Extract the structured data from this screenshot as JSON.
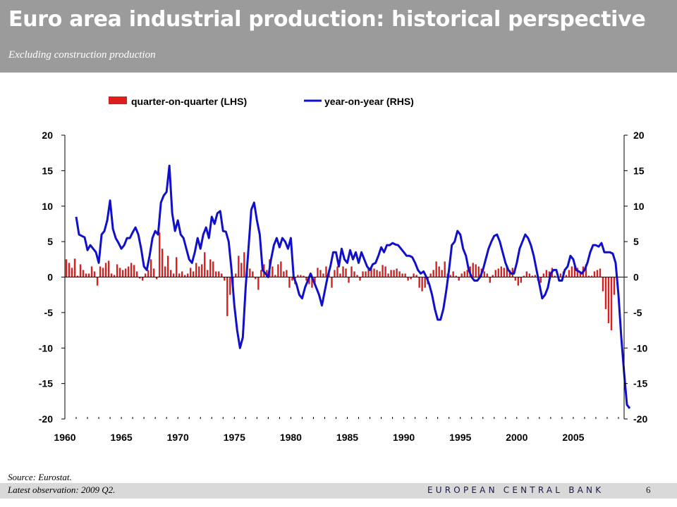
{
  "header": {
    "title": "Euro area industrial production: historical perspective",
    "subtitle": "Excluding construction production"
  },
  "footer": {
    "source": "Source: Eurostat.",
    "latest": "Latest observation: 2009 Q2.",
    "bank": "EUROPEAN CENTRAL BANK",
    "page": "6"
  },
  "colors": {
    "bars": "#dd1e1e",
    "line": "#1010cc",
    "banner": "#9b9b9b"
  },
  "chart_data": {
    "type": "bar",
    "title": "",
    "legend_position": "top",
    "grid": false,
    "x": {
      "range": [
        1960,
        2009.5
      ],
      "ticks": [
        1960,
        1965,
        1970,
        1975,
        1980,
        1985,
        1990,
        1995,
        2000,
        2005
      ],
      "tick_labels": [
        "1960",
        "1965",
        "1970",
        "1975",
        "1980",
        "1985",
        "1990",
        "1995",
        "2000",
        "2005"
      ]
    },
    "y_left": {
      "range": [
        -20,
        20
      ],
      "ticks": [
        20,
        15,
        10,
        5,
        0,
        -5,
        -10,
        -15,
        -20
      ],
      "tick_labels": [
        "20",
        "15",
        "10",
        "5",
        "0",
        "-5",
        "-10",
        "-15",
        "-20"
      ]
    },
    "y_right": {
      "range": [
        -20,
        20
      ],
      "ticks": [
        20,
        15,
        10,
        5,
        0,
        -5,
        -10,
        -15,
        -20
      ],
      "tick_labels": [
        "20",
        "15",
        "10",
        "5",
        "0",
        "-5",
        "-10",
        "-15",
        "-20"
      ]
    },
    "series": [
      {
        "name": "quarter-on-quarter (LHS)",
        "type": "bar",
        "axis": "left",
        "start": 1960.0,
        "step": 0.25,
        "values": [
          2.5,
          2.0,
          1.3,
          2.6,
          0.2,
          1.8,
          1.0,
          0.5,
          0.5,
          1.5,
          0.8,
          -1.2,
          1.5,
          1.3,
          2.0,
          2.3,
          0.5,
          0.3,
          1.8,
          1.3,
          1.0,
          1.2,
          1.5,
          2.0,
          1.7,
          0.8,
          -0.2,
          -0.5,
          0.5,
          1.0,
          2.5,
          1.2,
          -0.3,
          6.3,
          4.0,
          1.5,
          3.0,
          1.0,
          0.5,
          2.8,
          0.5,
          0.8,
          0.3,
          0.5,
          1.3,
          0.8,
          2.0,
          1.5,
          1.8,
          3.5,
          1.0,
          2.5,
          2.2,
          0.8,
          0.8,
          0.5,
          -0.5,
          -5.5,
          -2.5,
          -1.8,
          0.5,
          3.0,
          2.0,
          3.5,
          1.5,
          1.2,
          0.8,
          -0.3,
          -1.8,
          1.0,
          1.8,
          1.0,
          2.5,
          1.5,
          0.3,
          1.8,
          2.2,
          0.8,
          1.0,
          -1.5,
          -0.5,
          -1.0,
          0.3,
          0.3,
          0.2,
          -0.5,
          -1.0,
          -1.5,
          -0.8,
          1.3,
          1.0,
          0.5,
          1.5,
          1.0,
          -1.5,
          1.0,
          1.5,
          0.5,
          1.5,
          1.2,
          -0.8,
          1.5,
          0.8,
          0.3,
          -0.5,
          0.8,
          0.8,
          1.2,
          1.3,
          1.2,
          1.0,
          0.8,
          1.7,
          1.5,
          0.5,
          1.0,
          1.0,
          1.2,
          0.8,
          0.5,
          0.5,
          -0.5,
          -0.3,
          0.5,
          0.3,
          -1.5,
          -2.0,
          -1.5,
          -1.0,
          0.5,
          1.0,
          2.2,
          1.5,
          1.0,
          2.2,
          0.5,
          0.3,
          0.8,
          0.2,
          -0.5,
          0.5,
          0.8,
          1.0,
          1.5,
          2.0,
          1.8,
          1.5,
          1.2,
          0.8,
          0.5,
          -0.8,
          0.3,
          1.0,
          1.2,
          1.5,
          1.3,
          1.5,
          1.0,
          1.3,
          -0.5,
          -1.2,
          -0.8,
          0.2,
          0.8,
          0.5,
          0.2,
          0.3,
          -0.5,
          -0.8,
          0.5,
          1.0,
          0.8,
          1.3,
          0.2,
          0.3,
          0.5,
          0.8,
          0.3,
          1.0,
          1.5,
          1.5,
          1.3,
          0.8,
          1.5,
          1.8,
          0.2,
          0.2,
          0.8,
          1.0,
          1.2,
          -2.0,
          -4.5,
          -6.5,
          -7.5,
          -2.5
        ]
      },
      {
        "name": "year-on-year (RHS)",
        "type": "line",
        "axis": "right",
        "start": 1961.0,
        "step": 0.25,
        "values": [
          8.5,
          6.0,
          5.8,
          5.6,
          3.8,
          4.5,
          4.0,
          3.5,
          2.0,
          6.0,
          6.5,
          8.0,
          10.8,
          6.8,
          5.5,
          4.8,
          4.0,
          4.5,
          5.5,
          5.5,
          6.3,
          7.0,
          6.0,
          4.0,
          1.5,
          1.0,
          3.0,
          5.5,
          6.5,
          6.0,
          10.5,
          11.5,
          12.0,
          15.7,
          9.0,
          6.5,
          8.0,
          6.0,
          5.5,
          4.0,
          2.5,
          2.0,
          3.5,
          5.5,
          4.0,
          6.0,
          7.0,
          5.5,
          8.5,
          7.5,
          9.0,
          9.3,
          6.5,
          6.4,
          5.0,
          1.0,
          -4.0,
          -7.5,
          -10.0,
          -8.5,
          -1.5,
          4.0,
          9.5,
          10.5,
          8.0,
          6.0,
          1.0,
          0.5,
          0.0,
          2.5,
          4.5,
          5.5,
          4.2,
          5.5,
          5.0,
          4.0,
          5.5,
          0.0,
          -1.0,
          -2.5,
          -3.0,
          -1.5,
          -0.5,
          0.5,
          -0.5,
          -1.5,
          -2.5,
          -4.0,
          -2.0,
          0.0,
          1.5,
          3.5,
          3.5,
          1.5,
          4.0,
          2.5,
          2.0,
          3.8,
          2.5,
          3.5,
          2.0,
          3.5,
          2.5,
          1.5,
          1.0,
          1.8,
          2.0,
          3.0,
          4.2,
          3.5,
          4.5,
          4.5,
          4.8,
          4.6,
          4.5,
          4.0,
          3.5,
          3.0,
          3.0,
          2.8,
          2.0,
          1.0,
          0.5,
          0.8,
          0.0,
          -1.0,
          -2.5,
          -4.5,
          -6.0,
          -6.0,
          -4.5,
          -2.0,
          1.0,
          4.5,
          5.0,
          6.5,
          6.0,
          4.0,
          3.0,
          1.0,
          0.0,
          -0.5,
          -0.5,
          0.0,
          1.0,
          2.5,
          4.0,
          5.0,
          5.8,
          6.0,
          5.0,
          3.5,
          2.0,
          1.0,
          0.5,
          0.5,
          2.0,
          4.0,
          5.0,
          6.0,
          5.5,
          4.5,
          3.0,
          1.0,
          -1.0,
          -3.0,
          -2.5,
          -1.5,
          0.5,
          1.0,
          1.0,
          -0.5,
          -0.5,
          1.0,
          1.5,
          3.0,
          2.5,
          1.0,
          0.8,
          0.5,
          1.0,
          2.0,
          3.5,
          4.5,
          4.5,
          4.3,
          4.8,
          3.5,
          3.5,
          3.5,
          3.3,
          2.0,
          -2.5,
          -8.5,
          -13.5,
          -18.0,
          -18.5
        ]
      }
    ]
  }
}
